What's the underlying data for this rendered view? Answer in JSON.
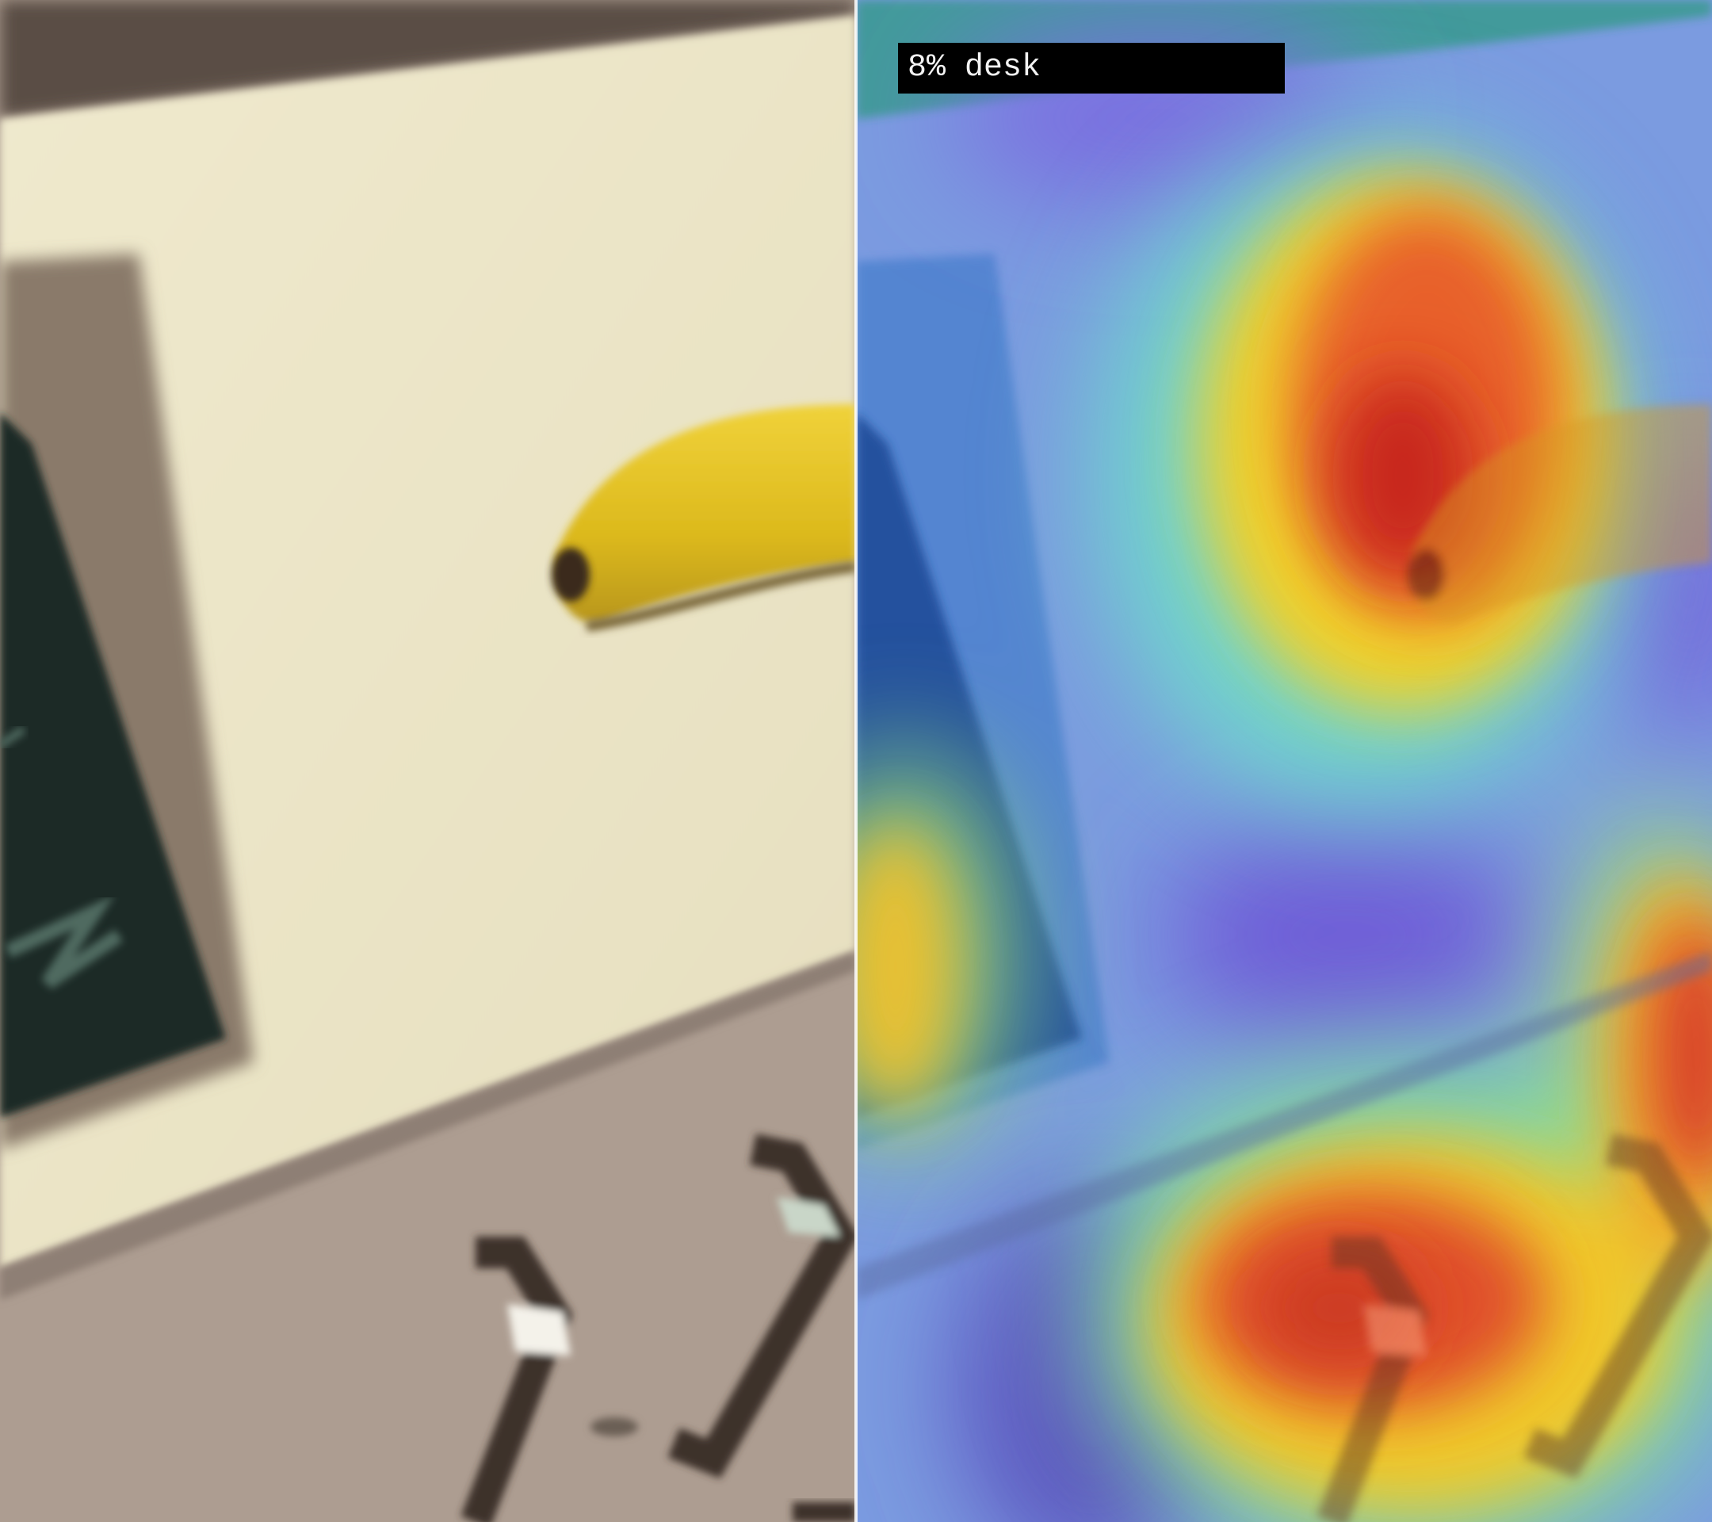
{
  "overlay": {
    "label": "8% desk"
  },
  "colors": {
    "desk_surface": "#ece6c7",
    "wall": "#ac9c90",
    "chalkboard": "#1e2a27",
    "banana": "#e3c21e",
    "heatmap_hot": "#e0331a",
    "heatmap_warm": "#f0d02a",
    "heatmap_mid": "#6fd8c8",
    "heatmap_cool": "#6f74d8",
    "label_background": "#000000",
    "label_text": "#f2f2f2"
  }
}
